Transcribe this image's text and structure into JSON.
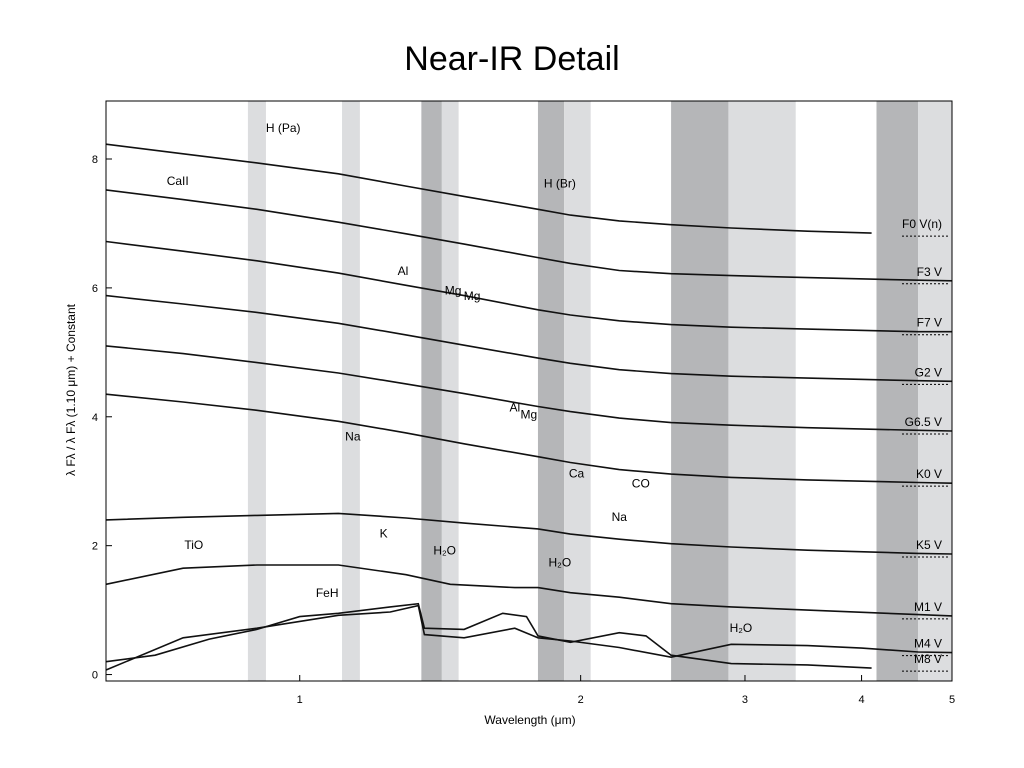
{
  "page_title": "Near-IR Detail",
  "chart_data": {
    "type": "line",
    "title": "Near-IR Detail",
    "xlabel": "Wavelength (μm)",
    "ylabel": "λ Fλ / λ Fλ (1.10 μm) + Constant",
    "x_scale": "log",
    "xlim": [
      0.62,
      5.0
    ],
    "ylim": [
      -0.1,
      8.9
    ],
    "x_ticks": [
      1,
      2,
      3,
      4,
      5
    ],
    "y_ticks": [
      0,
      2,
      4,
      6,
      8
    ],
    "grid": false,
    "shaded_bands": [
      {
        "x0": 0.88,
        "x1": 0.92,
        "tone": "light"
      },
      {
        "x0": 1.11,
        "x1": 1.16,
        "tone": "light"
      },
      {
        "x0": 1.35,
        "x1": 1.42,
        "tone": "dark"
      },
      {
        "x0": 1.42,
        "x1": 1.48,
        "tone": "light"
      },
      {
        "x0": 1.8,
        "x1": 1.92,
        "tone": "dark"
      },
      {
        "x0": 1.92,
        "x1": 2.05,
        "tone": "light"
      },
      {
        "x0": 2.5,
        "x1": 2.88,
        "tone": "dark"
      },
      {
        "x0": 2.88,
        "x1": 3.4,
        "tone": "light"
      },
      {
        "x0": 4.15,
        "x1": 4.6,
        "tone": "dark"
      },
      {
        "x0": 4.6,
        "x1": 5.0,
        "tone": "light"
      }
    ],
    "series": [
      {
        "name": "F0 V(n)",
        "offset": 7.08,
        "points": [
          [
            0.62,
            1.15
          ],
          [
            0.75,
            1.0
          ],
          [
            0.9,
            0.86
          ],
          [
            1.1,
            0.69
          ],
          [
            1.3,
            0.5
          ],
          [
            1.5,
            0.34
          ],
          [
            1.8,
            0.14
          ],
          [
            1.95,
            0.05
          ],
          [
            2.2,
            -0.04
          ],
          [
            2.5,
            -0.1
          ],
          [
            2.9,
            -0.15
          ],
          [
            3.5,
            -0.2
          ],
          [
            4.1,
            -0.23
          ]
        ]
      },
      {
        "name": "F3 V",
        "offset": 6.32,
        "points": [
          [
            0.62,
            1.2
          ],
          [
            0.75,
            1.05
          ],
          [
            0.9,
            0.9
          ],
          [
            1.1,
            0.7
          ],
          [
            1.3,
            0.52
          ],
          [
            1.5,
            0.36
          ],
          [
            1.8,
            0.15
          ],
          [
            1.95,
            0.06
          ],
          [
            2.2,
            -0.05
          ],
          [
            2.5,
            -0.1
          ],
          [
            2.9,
            -0.13
          ],
          [
            3.5,
            -0.16
          ],
          [
            4.6,
            -0.2
          ],
          [
            5.0,
            -0.21
          ]
        ]
      },
      {
        "name": "F7 V",
        "offset": 5.52,
        "points": [
          [
            0.62,
            1.2
          ],
          [
            0.75,
            1.05
          ],
          [
            0.9,
            0.9
          ],
          [
            1.1,
            0.71
          ],
          [
            1.3,
            0.52
          ],
          [
            1.5,
            0.36
          ],
          [
            1.8,
            0.14
          ],
          [
            1.95,
            0.06
          ],
          [
            2.2,
            -0.03
          ],
          [
            2.5,
            -0.09
          ],
          [
            2.9,
            -0.13
          ],
          [
            3.5,
            -0.16
          ],
          [
            4.6,
            -0.2
          ],
          [
            5.0,
            -0.2
          ]
        ]
      },
      {
        "name": "G2 V",
        "offset": 4.75,
        "points": [
          [
            0.62,
            1.13
          ],
          [
            0.75,
            1.0
          ],
          [
            0.9,
            0.87
          ],
          [
            1.1,
            0.7
          ],
          [
            1.3,
            0.52
          ],
          [
            1.5,
            0.36
          ],
          [
            1.8,
            0.16
          ],
          [
            1.95,
            0.08
          ],
          [
            2.2,
            -0.02
          ],
          [
            2.5,
            -0.08
          ],
          [
            2.9,
            -0.12
          ],
          [
            3.5,
            -0.15
          ],
          [
            4.6,
            -0.19
          ],
          [
            5.0,
            -0.2
          ]
        ]
      },
      {
        "name": "G6.5 V",
        "offset": 3.98,
        "points": [
          [
            0.62,
            1.12
          ],
          [
            0.75,
            1.0
          ],
          [
            0.9,
            0.86
          ],
          [
            1.1,
            0.7
          ],
          [
            1.3,
            0.53
          ],
          [
            1.5,
            0.38
          ],
          [
            1.8,
            0.18
          ],
          [
            1.95,
            0.1
          ],
          [
            2.2,
            0.0
          ],
          [
            2.5,
            -0.07
          ],
          [
            2.9,
            -0.11
          ],
          [
            3.5,
            -0.15
          ],
          [
            4.6,
            -0.19
          ],
          [
            5.0,
            -0.2
          ]
        ]
      },
      {
        "name": "K0 V",
        "offset": 3.15,
        "points": [
          [
            0.62,
            1.2
          ],
          [
            0.75,
            1.08
          ],
          [
            0.9,
            0.95
          ],
          [
            1.1,
            0.78
          ],
          [
            1.3,
            0.6
          ],
          [
            1.5,
            0.43
          ],
          [
            1.8,
            0.23
          ],
          [
            1.95,
            0.14
          ],
          [
            2.2,
            0.03
          ],
          [
            2.5,
            -0.04
          ],
          [
            2.9,
            -0.09
          ],
          [
            3.5,
            -0.13
          ],
          [
            4.6,
            -0.17
          ],
          [
            5.0,
            -0.18
          ]
        ]
      },
      {
        "name": "K5 V",
        "offset": 2.4,
        "points": [
          [
            0.62,
            0.0
          ],
          [
            0.75,
            0.04
          ],
          [
            0.9,
            0.07
          ],
          [
            1.1,
            0.1
          ],
          [
            1.3,
            0.03
          ],
          [
            1.5,
            -0.05
          ],
          [
            1.8,
            -0.14
          ],
          [
            1.95,
            -0.22
          ],
          [
            2.2,
            -0.3
          ],
          [
            2.5,
            -0.37
          ],
          [
            2.9,
            -0.42
          ],
          [
            3.5,
            -0.47
          ],
          [
            4.6,
            -0.52
          ],
          [
            5.0,
            -0.53
          ]
        ]
      },
      {
        "name": "M1 V",
        "offset": 1.65,
        "points": [
          [
            0.62,
            -0.25
          ],
          [
            0.75,
            0.0
          ],
          [
            0.9,
            0.05
          ],
          [
            1.1,
            0.05
          ],
          [
            1.3,
            -0.1
          ],
          [
            1.45,
            -0.25
          ],
          [
            1.7,
            -0.3
          ],
          [
            1.8,
            -0.3
          ],
          [
            1.95,
            -0.38
          ],
          [
            2.2,
            -0.45
          ],
          [
            2.5,
            -0.55
          ],
          [
            2.9,
            -0.6
          ],
          [
            3.5,
            -0.65
          ],
          [
            4.6,
            -0.72
          ],
          [
            5.0,
            -0.74
          ]
        ]
      },
      {
        "name": "M4 V",
        "offset": 0.97,
        "points": [
          [
            0.62,
            -0.9
          ],
          [
            0.75,
            -0.4
          ],
          [
            0.9,
            -0.25
          ],
          [
            1.1,
            -0.05
          ],
          [
            1.25,
            0.0
          ],
          [
            1.34,
            0.1
          ],
          [
            1.36,
            -0.35
          ],
          [
            1.5,
            -0.4
          ],
          [
            1.7,
            -0.25
          ],
          [
            1.8,
            -0.4
          ],
          [
            1.95,
            -0.45
          ],
          [
            2.2,
            -0.55
          ],
          [
            2.5,
            -0.7
          ],
          [
            2.9,
            -0.5
          ],
          [
            3.5,
            -0.52
          ],
          [
            4.0,
            -0.56
          ],
          [
            4.6,
            -0.62
          ],
          [
            5.0,
            -0.63
          ]
        ]
      },
      {
        "name": "M8 V",
        "offset": 0.0,
        "points": [
          [
            0.62,
            0.2
          ],
          [
            0.7,
            0.3
          ],
          [
            0.8,
            0.55
          ],
          [
            0.9,
            0.7
          ],
          [
            1.0,
            0.9
          ],
          [
            1.1,
            0.95
          ],
          [
            1.25,
            1.05
          ],
          [
            1.34,
            1.1
          ],
          [
            1.36,
            0.72
          ],
          [
            1.5,
            0.7
          ],
          [
            1.65,
            0.95
          ],
          [
            1.75,
            0.9
          ],
          [
            1.8,
            0.6
          ],
          [
            1.95,
            0.5
          ],
          [
            2.2,
            0.65
          ],
          [
            2.35,
            0.6
          ],
          [
            2.5,
            0.3
          ],
          [
            2.9,
            0.17
          ],
          [
            3.5,
            0.15
          ],
          [
            4.1,
            0.1
          ]
        ]
      }
    ],
    "annotations": [
      {
        "text": "H (Pa)",
        "x": 0.96,
        "y": 8.42
      },
      {
        "text": "CaII",
        "x": 0.74,
        "y": 7.6
      },
      {
        "text": "H (Br)",
        "x": 1.9,
        "y": 7.56
      },
      {
        "text": "Al",
        "x": 1.29,
        "y": 6.2
      },
      {
        "text": "Mg",
        "x": 1.46,
        "y": 5.9
      },
      {
        "text": "Mg",
        "x": 1.53,
        "y": 5.81
      },
      {
        "text": "Al",
        "x": 1.7,
        "y": 4.08
      },
      {
        "text": "Mg",
        "x": 1.76,
        "y": 3.97
      },
      {
        "text": "Na",
        "x": 1.14,
        "y": 3.63
      },
      {
        "text": "Ca",
        "x": 1.98,
        "y": 3.06
      },
      {
        "text": "CO",
        "x": 2.32,
        "y": 2.9
      },
      {
        "text": "Na",
        "x": 2.2,
        "y": 2.38
      },
      {
        "text": "TiO",
        "x": 0.77,
        "y": 1.95
      },
      {
        "text": "K",
        "x": 1.23,
        "y": 2.13
      },
      {
        "text": "H₂O",
        "x": 1.43,
        "y": 1.86
      },
      {
        "text": "H₂O",
        "x": 1.9,
        "y": 1.68
      },
      {
        "text": "FeH",
        "x": 1.07,
        "y": 1.2
      },
      {
        "text": "H₂O",
        "x": 2.97,
        "y": 0.66
      }
    ]
  }
}
